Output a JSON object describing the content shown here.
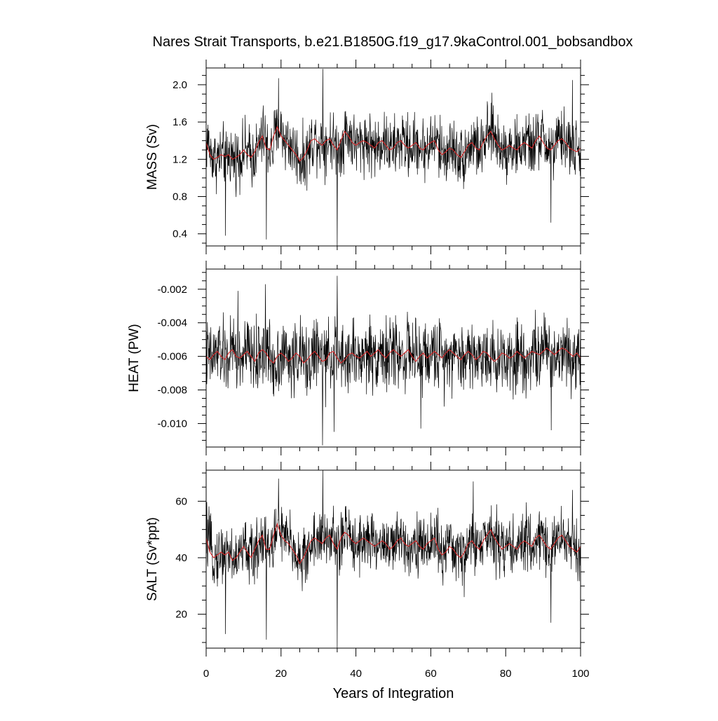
{
  "chart_data": {
    "type": "line",
    "title": "Nares Strait Transports, b.e21.B1850G.f19_g17.9kaControl.001_bobsandbox",
    "xlabel": "Years of Integration",
    "xlim": [
      0,
      100
    ],
    "xticks": [
      0,
      20,
      40,
      60,
      80,
      100
    ],
    "xtick_labels": [
      "0",
      "20",
      "40",
      "60",
      "80",
      "100"
    ],
    "samples_per_year": 12,
    "grid": false,
    "panels": [
      {
        "id": "mass",
        "ylabel": "MASS (Sv)",
        "ylim": [
          0.27,
          2.18
        ],
        "yticks": [
          0.4,
          0.8,
          1.2,
          1.6,
          2.0
        ],
        "ytick_labels": [
          "0.4",
          "0.8",
          "1.2",
          "1.6",
          "2.0"
        ],
        "series": [
          {
            "kind": "monthly",
            "color": "#000000",
            "mean": 1.33,
            "amplitude": 0.2
          },
          {
            "kind": "annual",
            "color": "#d62728",
            "values": [
              1.38,
              1.25,
              1.2,
              1.22,
              1.25,
              1.23,
              1.25,
              1.2,
              1.22,
              1.25,
              1.3,
              1.25,
              1.22,
              1.28,
              1.38,
              1.45,
              1.32,
              1.3,
              1.45,
              1.55,
              1.45,
              1.4,
              1.35,
              1.3,
              1.25,
              1.18,
              1.22,
              1.3,
              1.4,
              1.42,
              1.38,
              1.35,
              1.4,
              1.42,
              1.35,
              1.3,
              1.4,
              1.5,
              1.45,
              1.38,
              1.35,
              1.38,
              1.4,
              1.38,
              1.35,
              1.32,
              1.38,
              1.4,
              1.35,
              1.3,
              1.32,
              1.38,
              1.4,
              1.35,
              1.32,
              1.35,
              1.38,
              1.32,
              1.3,
              1.35,
              1.38,
              1.4,
              1.3,
              1.25,
              1.28,
              1.32,
              1.3,
              1.25,
              1.22,
              1.28,
              1.35,
              1.38,
              1.32,
              1.3,
              1.38,
              1.45,
              1.5,
              1.42,
              1.35,
              1.3,
              1.32,
              1.35,
              1.32,
              1.3,
              1.35,
              1.38,
              1.35,
              1.32,
              1.4,
              1.45,
              1.38,
              1.32,
              1.3,
              1.35,
              1.4,
              1.42,
              1.38,
              1.32,
              1.3,
              1.28,
              1.32
            ],
            "spikes": [
              [
                5.2,
                0.38
              ],
              [
                16.1,
                0.34
              ],
              [
                35.0,
                0.24
              ],
              [
                19.3,
                2.07
              ],
              [
                31.2,
                2.17
              ],
              [
                92.1,
                0.52
              ],
              [
                97.8,
                2.05
              ]
            ]
          }
        ]
      },
      {
        "id": "heat",
        "ylabel": "HEAT (PW)",
        "ylim": [
          -0.0114,
          -0.0008
        ],
        "yticks": [
          -0.01,
          -0.008,
          -0.006,
          -0.004,
          -0.002
        ],
        "ytick_labels": [
          "-0.010",
          "-0.008",
          "-0.006",
          "-0.004",
          "-0.002"
        ],
        "series": [
          {
            "kind": "monthly",
            "color": "#000000",
            "mean": -0.0061,
            "amplitude": 0.0013
          },
          {
            "kind": "annual",
            "color": "#d62728",
            "values": [
              -0.006,
              -0.0062,
              -0.0059,
              -0.0057,
              -0.006,
              -0.0062,
              -0.0058,
              -0.0056,
              -0.006,
              -0.0061,
              -0.0059,
              -0.0057,
              -0.006,
              -0.0063,
              -0.0058,
              -0.0056,
              -0.0058,
              -0.0062,
              -0.0064,
              -0.006,
              -0.0058,
              -0.006,
              -0.0063,
              -0.0061,
              -0.0058,
              -0.006,
              -0.0064,
              -0.0062,
              -0.0059,
              -0.0057,
              -0.006,
              -0.0063,
              -0.0062,
              -0.0058,
              -0.0057,
              -0.0061,
              -0.0064,
              -0.0062,
              -0.0059,
              -0.0058,
              -0.006,
              -0.0061,
              -0.0059,
              -0.0057,
              -0.006,
              -0.0058,
              -0.0056,
              -0.0059,
              -0.0061,
              -0.0058,
              -0.0056,
              -0.0058,
              -0.006,
              -0.0058,
              -0.0056,
              -0.006,
              -0.0063,
              -0.006,
              -0.0058,
              -0.0061,
              -0.0059,
              -0.0057,
              -0.0059,
              -0.0061,
              -0.0058,
              -0.0056,
              -0.0058,
              -0.006,
              -0.0062,
              -0.0059,
              -0.0057,
              -0.0059,
              -0.0062,
              -0.006,
              -0.0057,
              -0.0058,
              -0.0061,
              -0.0063,
              -0.0061,
              -0.0058,
              -0.0059,
              -0.0061,
              -0.006,
              -0.0057,
              -0.0059,
              -0.0061,
              -0.0059,
              -0.0057,
              -0.0058,
              -0.0059,
              -0.0057,
              -0.0055,
              -0.0057,
              -0.0059,
              -0.0057,
              -0.0055,
              -0.0056,
              -0.0058,
              -0.006,
              -0.0058,
              -0.0061
            ],
            "spikes": [
              [
                15.8,
                -0.0017
              ],
              [
                35.0,
                -0.0012
              ],
              [
                31.1,
                -0.0113
              ],
              [
                57.3,
                -0.0103
              ],
              [
                92.2,
                -0.0104
              ],
              [
                34.2,
                -0.0105
              ],
              [
                8.5,
                -0.0021
              ]
            ]
          }
        ]
      },
      {
        "id": "salt",
        "ylabel": "SALT (Sv*ppt)",
        "ylim": [
          8,
          71
        ],
        "yticks": [
          20,
          40,
          60
        ],
        "ytick_labels": [
          "20",
          "40",
          "60"
        ],
        "series": [
          {
            "kind": "monthly",
            "color": "#000000",
            "mean": 43.5,
            "amplitude": 6.5
          },
          {
            "kind": "annual",
            "color": "#d62728",
            "values": [
              47,
              42,
              40,
              41,
              42,
              41,
              42,
              39,
              40,
              42,
              44,
              42,
              40,
              43,
              46,
              48,
              43,
              43,
              48,
              52,
              48,
              46,
              45,
              43,
              41,
              38,
              40,
              43,
              46,
              47,
              46,
              45,
              47,
              48,
              45,
              43,
              47,
              49,
              48,
              46,
              45,
              46,
              47,
              46,
              45,
              44,
              45,
              46,
              45,
              43,
              44,
              46,
              47,
              45,
              44,
              45,
              46,
              44,
              43,
              45,
              46,
              47,
              43,
              41,
              42,
              44,
              43,
              41,
              40,
              42,
              45,
              46,
              44,
              43,
              46,
              48,
              50,
              47,
              45,
              43,
              44,
              45,
              44,
              43,
              45,
              46,
              45,
              44,
              47,
              48,
              46,
              44,
              43,
              45,
              47,
              48,
              46,
              44,
              43,
              42,
              44
            ],
            "spikes": [
              [
                5.2,
                13
              ],
              [
                16.1,
                11
              ],
              [
                35.0,
                8
              ],
              [
                19.3,
                68
              ],
              [
                31.2,
                71
              ],
              [
                92.1,
                17
              ],
              [
                71.3,
                67
              ],
              [
                97.8,
                64
              ]
            ]
          }
        ]
      }
    ]
  }
}
